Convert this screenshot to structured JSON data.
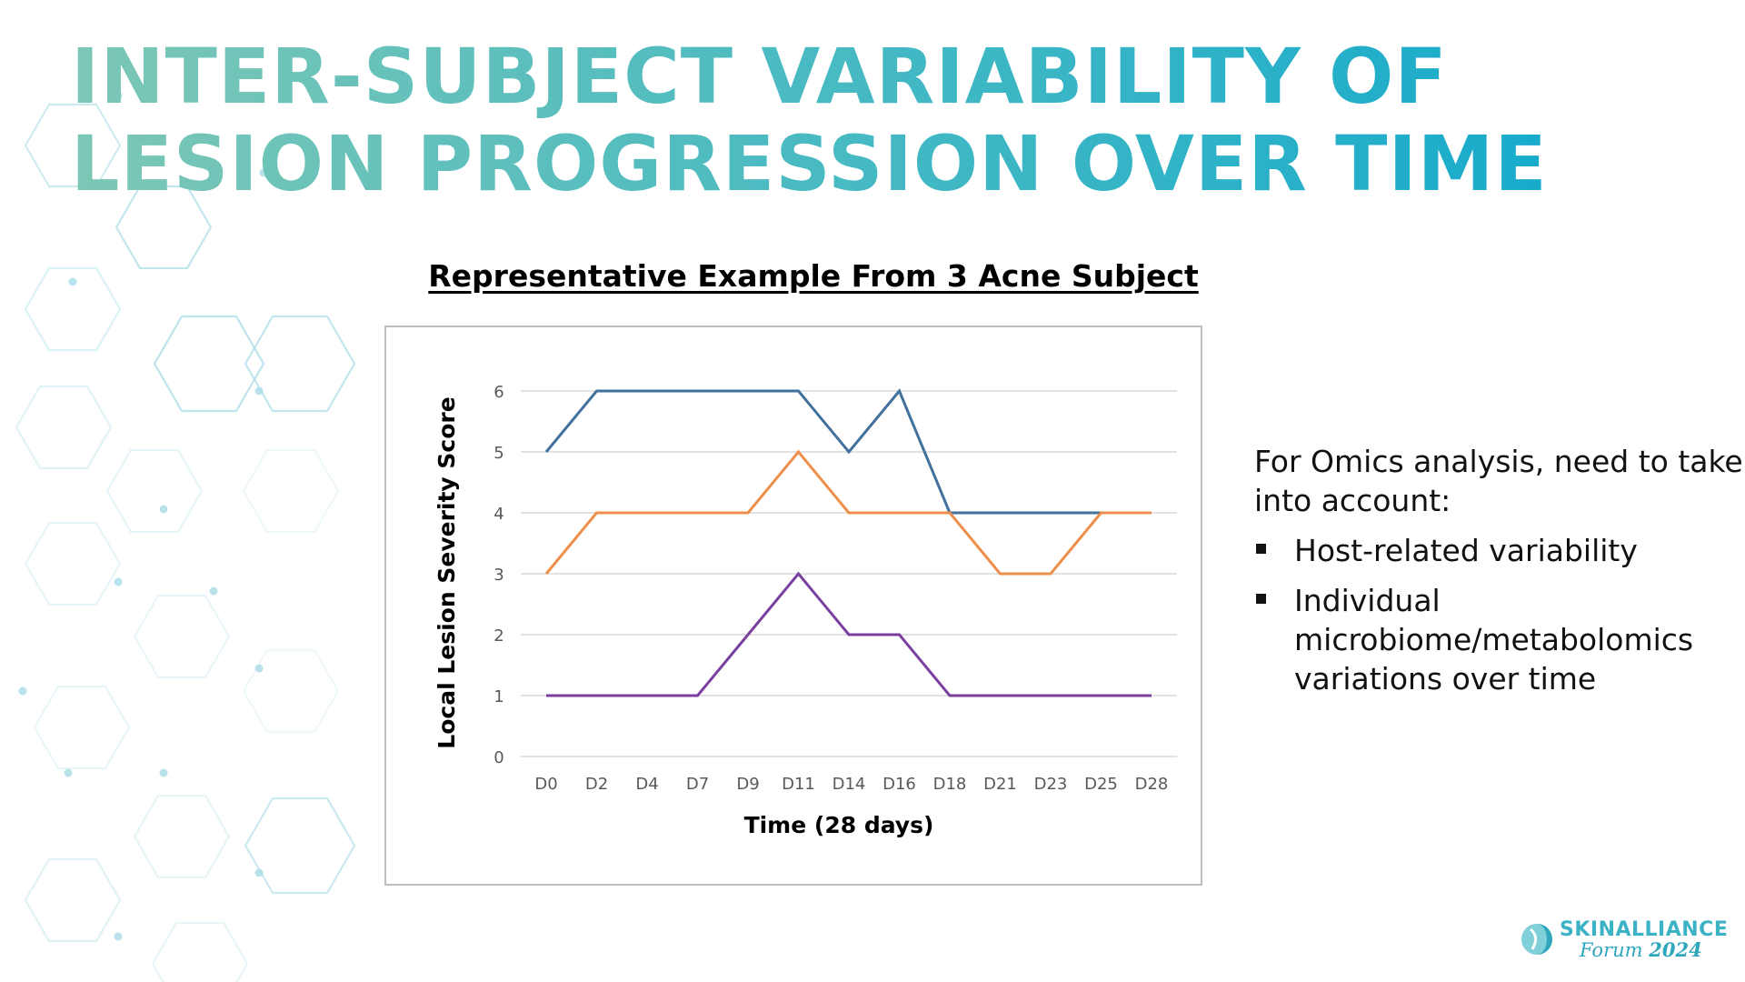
{
  "slide": {
    "title": "INTER-SUBJECT VARIABILITY OF LESION PROGRESSION OVER TIME"
  },
  "chart_heading": "Representative Example From 3 Acne Subject",
  "chart_data": {
    "type": "line",
    "x": [
      "D0",
      "D2",
      "D4",
      "D7",
      "D9",
      "D11",
      "D14",
      "D16",
      "D18",
      "D21",
      "D23",
      "D25",
      "D28"
    ],
    "series": [
      {
        "color": "#41719c",
        "values": [
          5,
          6,
          6,
          6,
          6,
          6,
          5,
          6,
          4,
          4,
          4,
          4,
          4
        ]
      },
      {
        "color": "#ed8f4a",
        "values": [
          3,
          4,
          4,
          4,
          4,
          5,
          4,
          4,
          4,
          3,
          3,
          4,
          4
        ]
      },
      {
        "color": "#7a3f9f",
        "values": [
          1,
          1,
          1,
          1,
          2,
          3,
          2,
          2,
          1,
          1,
          1,
          1,
          1
        ]
      }
    ],
    "xlabel": "Time (28 days)",
    "ylabel": "Local Lesion Severity Score",
    "ylim": [
      0,
      6
    ],
    "yticks": [
      "0",
      "1",
      "2",
      "3",
      "4",
      "5",
      "6"
    ],
    "grid": true,
    "legend": "none"
  },
  "notes": {
    "intro": "For Omics analysis, need to take into account:",
    "bullets": [
      "Host-related variability",
      "Individual microbiome/metabolomics variations over time"
    ]
  },
  "logo": {
    "name": "SKINALLIANCE",
    "sub": "Forum",
    "year": "2024"
  },
  "colors": {
    "title_start": "#7cc7b5",
    "title_end": "#12a9cc",
    "hex_pattern": "#a8dbe6",
    "gridline": "#d9d9d9",
    "logo": "#3bb3c4"
  }
}
